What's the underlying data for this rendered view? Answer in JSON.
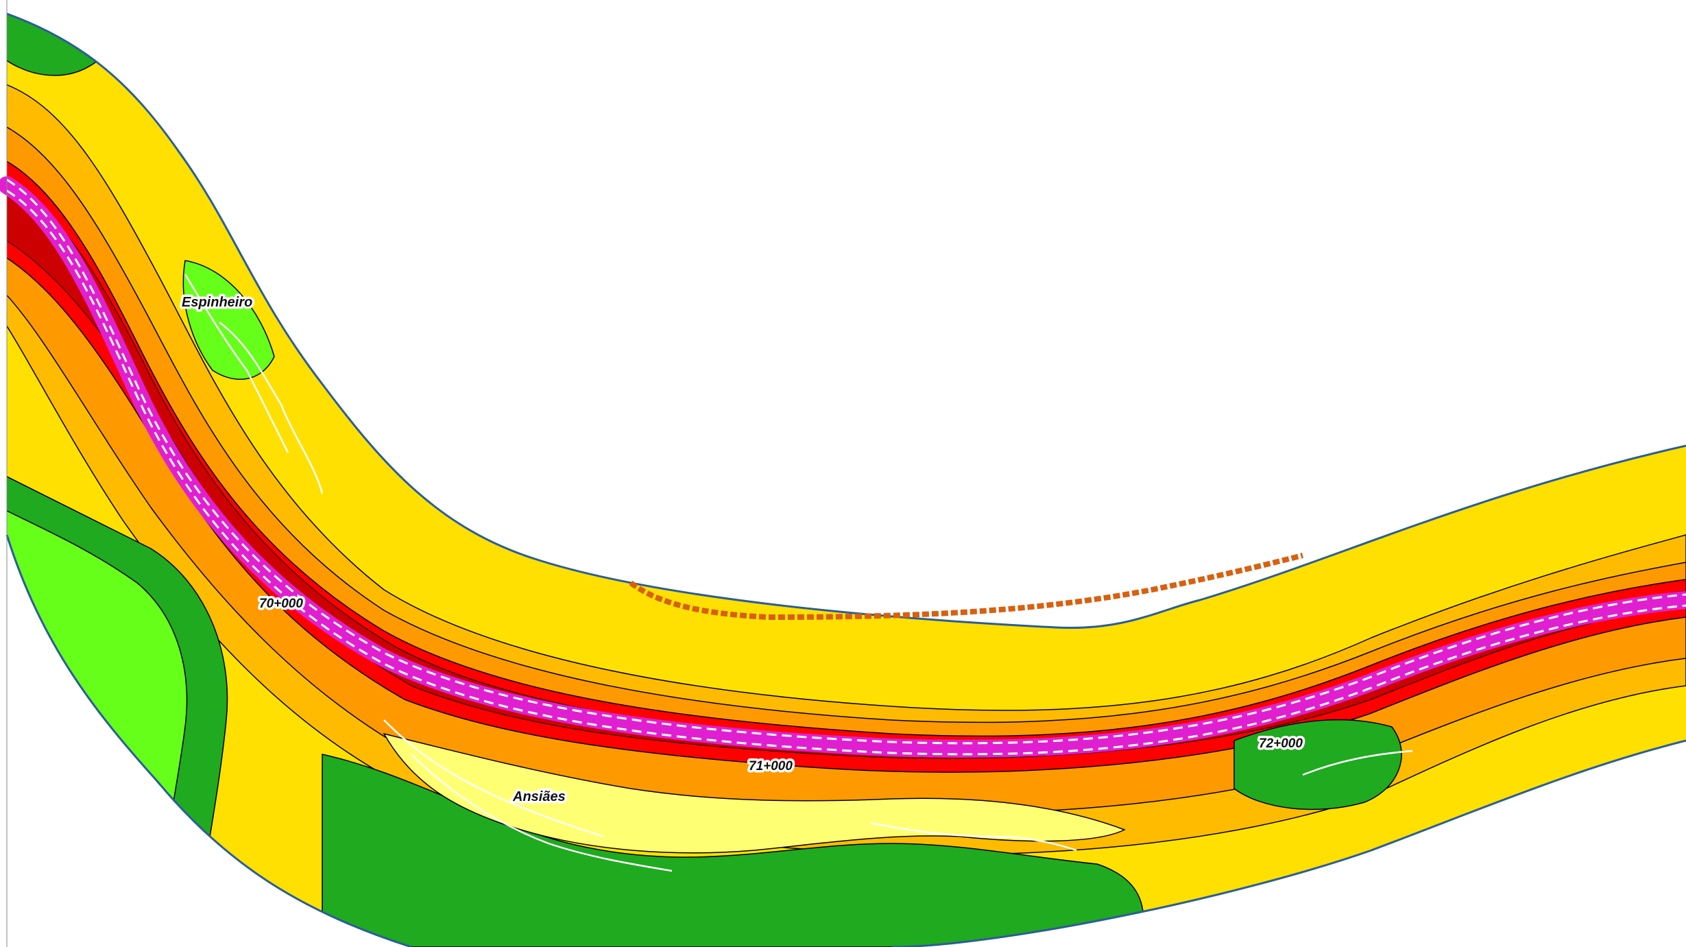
{
  "map": {
    "place_labels": [
      {
        "name": "Espinheiro"
      },
      {
        "name": "Ansiães"
      }
    ],
    "chainage_labels": [
      {
        "text": "70+000"
      },
      {
        "text": "71+000"
      },
      {
        "text": "72+000"
      }
    ],
    "colors": {
      "band_green": "#1faa1f",
      "band_light_green": "#66ff1a",
      "band_pale_yellow": "#ffff73",
      "band_yellow": "#ffe000",
      "band_amber": "#ffbb00",
      "band_orange": "#ff9900",
      "band_red": "#ff0000",
      "band_dark_red": "#cc0000",
      "road_magenta": "#e020d0",
      "boundary_blue": "#2a5d9a",
      "contour_black": "#000000",
      "background": "#ffffff"
    }
  }
}
